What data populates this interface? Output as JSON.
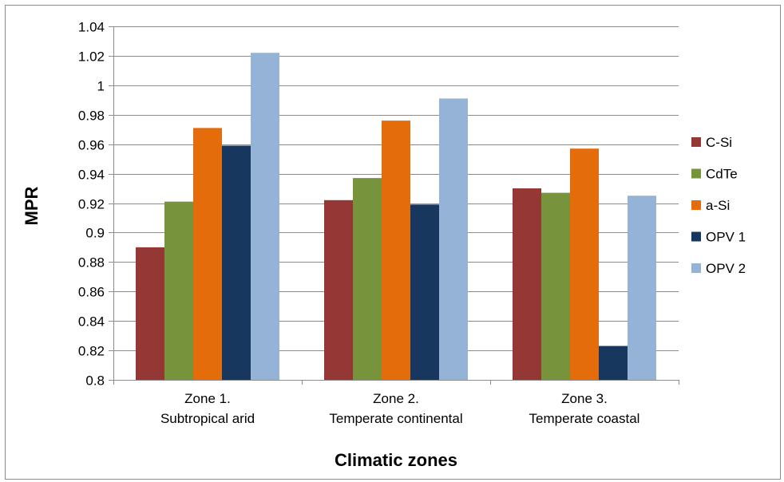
{
  "chart_data": {
    "type": "bar",
    "title": "",
    "xlabel": "Climatic zones",
    "ylabel": "MPR",
    "ylim": [
      0.8,
      1.04
    ],
    "ytick_step": 0.02,
    "yticks": [
      "0.8",
      "0.82",
      "0.84",
      "0.86",
      "0.88",
      "0.9",
      "0.92",
      "0.94",
      "0.96",
      "0.98",
      "1",
      "1.02",
      "1.04"
    ],
    "grid": true,
    "legend_position": "right",
    "categories": [
      [
        "Zone 1.",
        "Subtropical arid"
      ],
      [
        "Zone 2.",
        "Temperate continental"
      ],
      [
        "Zone 3.",
        "Temperate coastal"
      ]
    ],
    "series": [
      {
        "name": "C-Si",
        "color": "#953735",
        "values": [
          0.89,
          0.922,
          0.93
        ]
      },
      {
        "name": "CdTe",
        "color": "#77933C",
        "values": [
          0.921,
          0.937,
          0.927
        ]
      },
      {
        "name": "a-Si",
        "color": "#E46C0A",
        "values": [
          0.971,
          0.976,
          0.957
        ]
      },
      {
        "name": "OPV 1",
        "color": "#17375E",
        "values": [
          0.959,
          0.919,
          0.823
        ]
      },
      {
        "name": "OPV 2",
        "color": "#95B3D7",
        "values": [
          1.022,
          0.991,
          0.925
        ]
      }
    ]
  }
}
